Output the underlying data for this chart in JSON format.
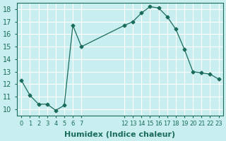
{
  "xlabel": "Humidex (Indice chaleur)",
  "ylabel": "",
  "x_values": [
    0,
    1,
    2,
    3,
    4,
    5,
    6,
    7,
    12,
    13,
    14,
    15,
    16,
    17,
    18,
    19,
    20,
    21,
    22,
    23
  ],
  "y_values": [
    12.3,
    11.1,
    10.4,
    10.4,
    9.9,
    10.3,
    16.7,
    15.0,
    16.7,
    17.0,
    17.7,
    18.2,
    18.1,
    17.4,
    16.4,
    14.8,
    13.0,
    12.9,
    12.8,
    12.4
  ],
  "line_color": "#1a6b5a",
  "marker": "D",
  "marker_size": 2.5,
  "bg_color": "#c8eef0",
  "grid_color": "#ffffff",
  "ylim": [
    9.5,
    18.5
  ],
  "yticks": [
    10,
    11,
    12,
    13,
    14,
    15,
    16,
    17,
    18
  ],
  "axis_color": "#1a6b5a",
  "label_fontsize": 8,
  "tick_fontsize": 7
}
